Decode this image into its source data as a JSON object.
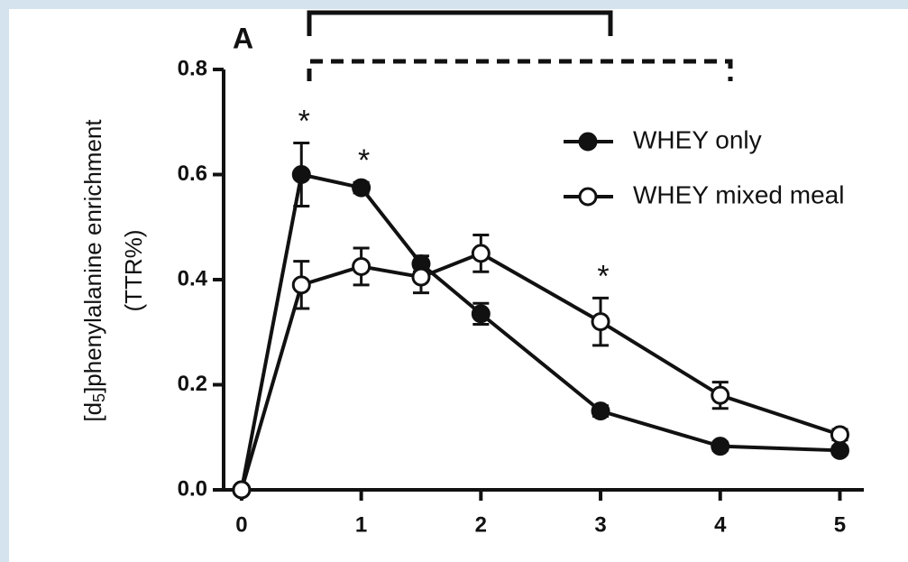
{
  "chart_data": {
    "type": "line",
    "panel_label": "A",
    "ylabel": [
      "[d",
      "5",
      "]phenylalanine enrichment"
    ],
    "ylabel_unit": "(TTR%)",
    "x": [
      0,
      0.5,
      1,
      1.5,
      2,
      3,
      4,
      5
    ],
    "series": [
      {
        "name": "WHEY only",
        "color": "#111111",
        "marker": "filled",
        "values": [
          0,
          0.6,
          0.575,
          0.43,
          0.335,
          0.15,
          0.083,
          0.075
        ],
        "errors": [
          0,
          0.06,
          0.01,
          0.015,
          0.02,
          0.01,
          0.008,
          0.008
        ]
      },
      {
        "name": "WHEY mixed meal",
        "color": "#111111",
        "marker": "open",
        "values": [
          0,
          0.39,
          0.425,
          0.405,
          0.45,
          0.32,
          0.18,
          0.105
        ],
        "errors": [
          0,
          0.045,
          0.035,
          0.03,
          0.035,
          0.045,
          0.025,
          0.01
        ]
      }
    ],
    "annotations": [
      {
        "text": "*",
        "x": 0.5
      },
      {
        "text": "*",
        "x": 1
      },
      {
        "text": "*",
        "x": 3
      }
    ],
    "xlim": [
      -0.15,
      5.2
    ],
    "xticks": [
      0,
      1,
      2,
      3,
      4,
      5
    ],
    "ylim": [
      0,
      0.8
    ],
    "yticks": [
      {
        "value": 0,
        "label": "0.0"
      },
      0.2,
      0.4,
      0.6,
      0.8
    ]
  }
}
